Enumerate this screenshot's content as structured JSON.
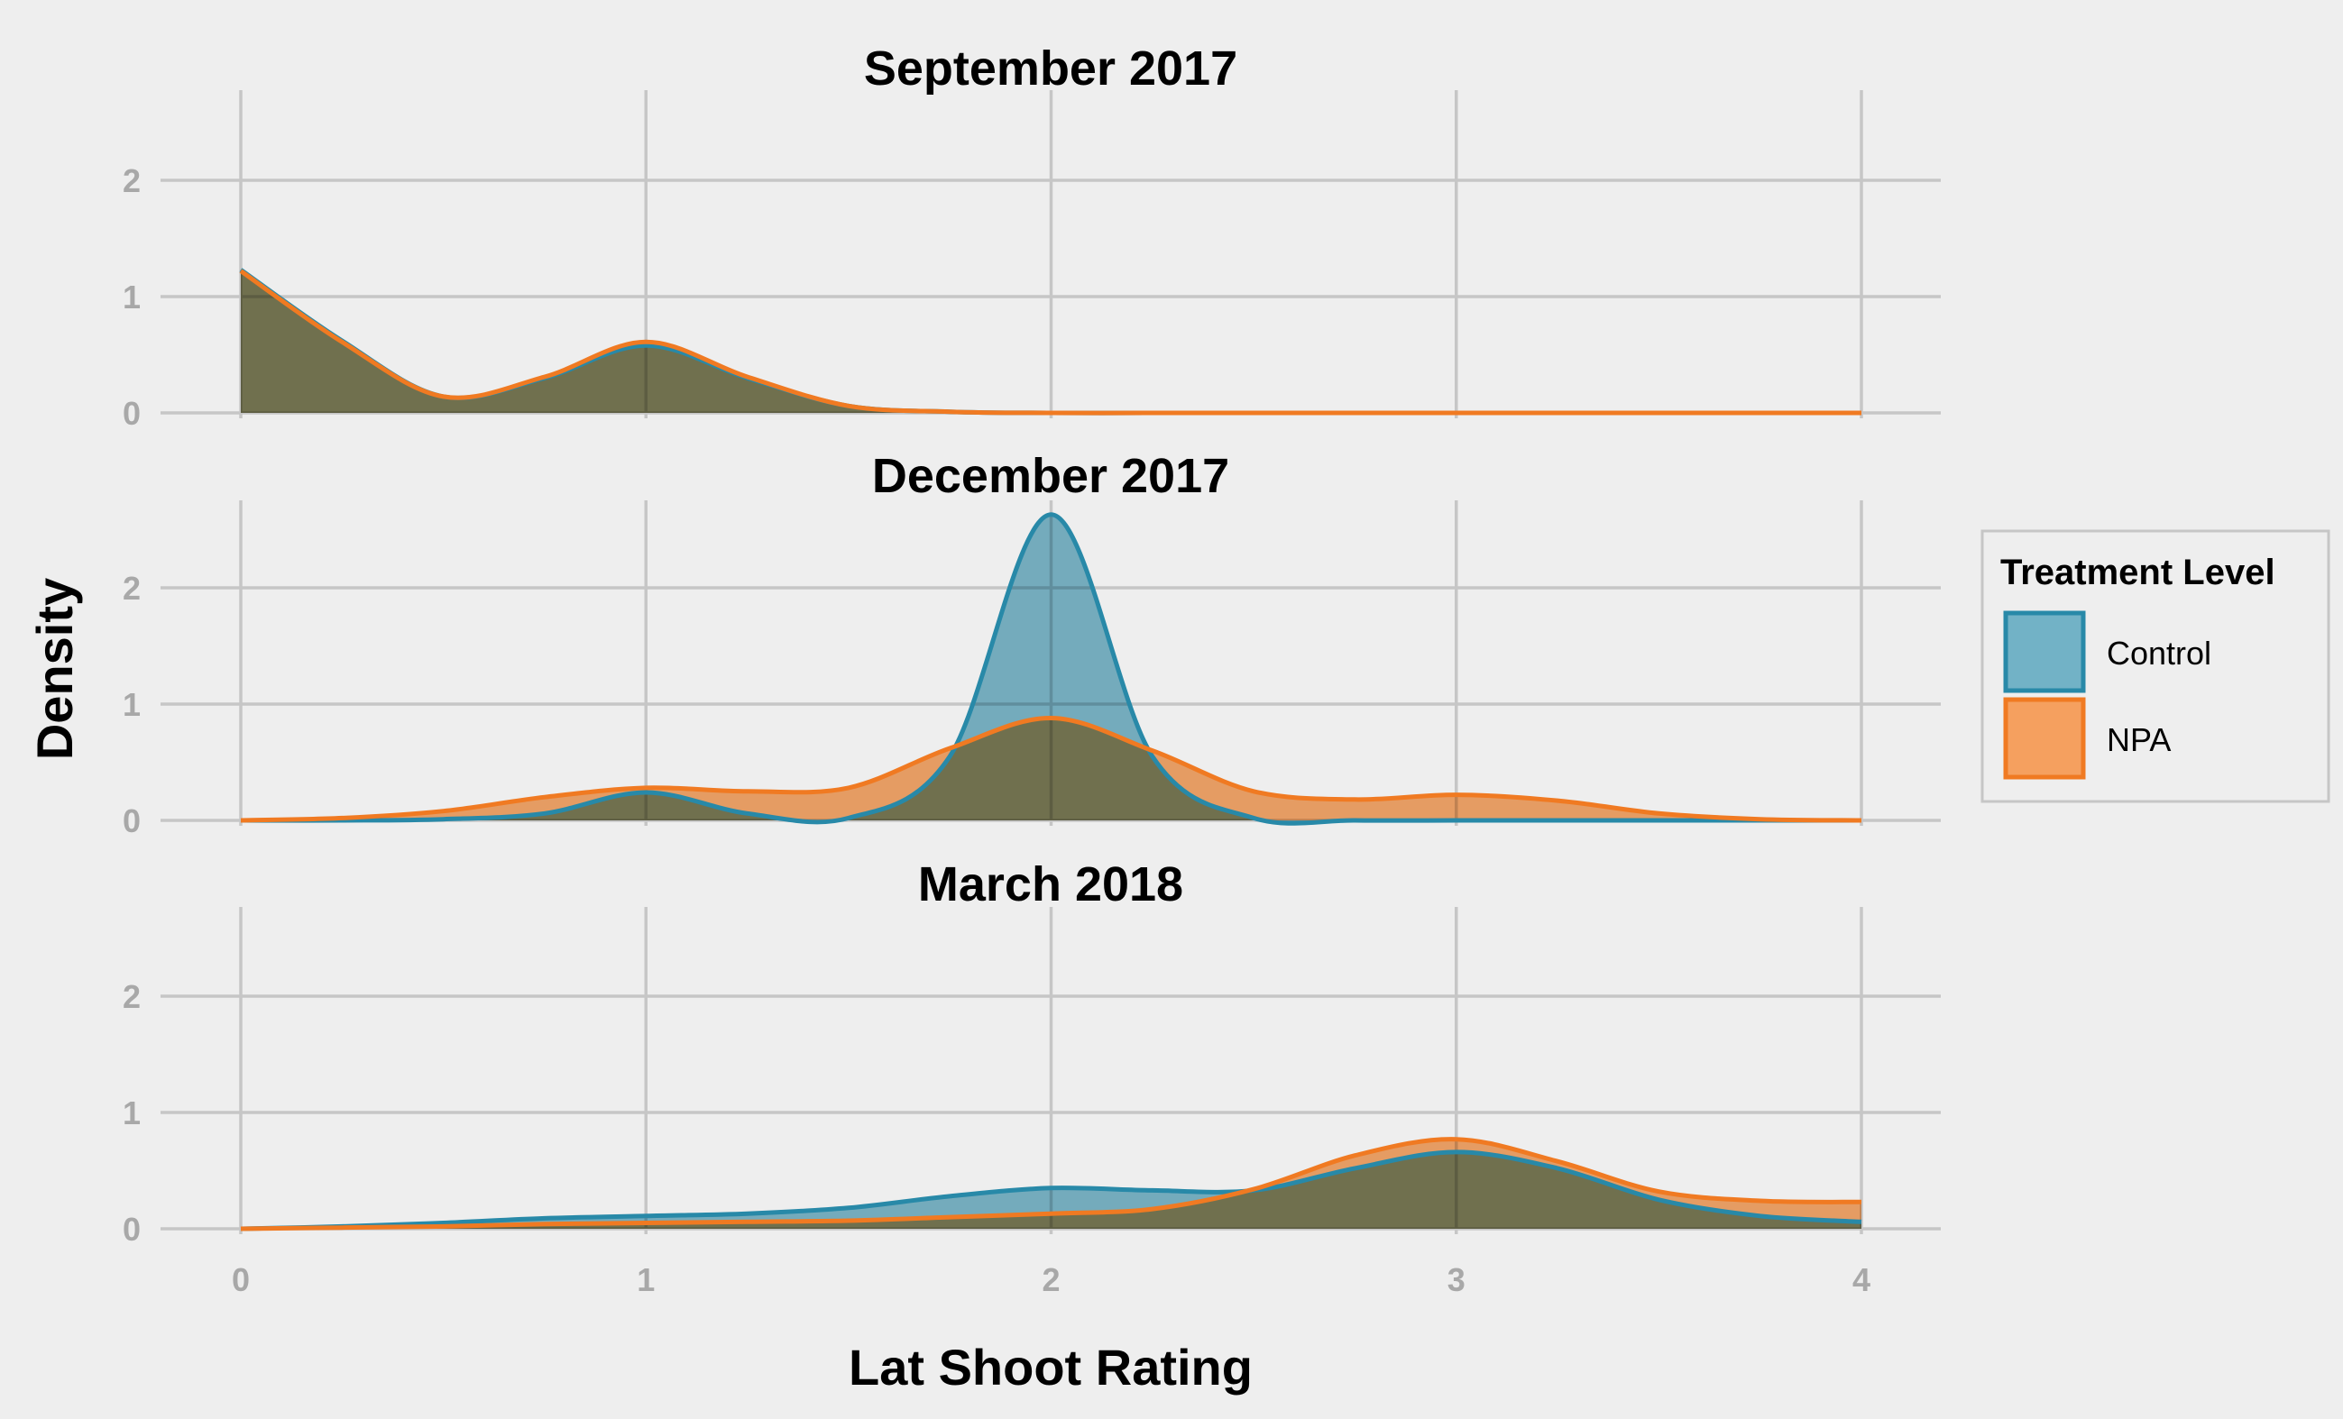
{
  "chart_data": {
    "type": "area",
    "subtype": "density",
    "xlabel": "Lat Shoot Rating",
    "ylabel": "Density",
    "xlim": [
      0,
      4
    ],
    "ylim": [
      0,
      2.6
    ],
    "x_ticks": [
      0,
      1,
      2,
      3,
      4
    ],
    "y_ticks": [
      0,
      1,
      2
    ],
    "grid": true,
    "legend": {
      "title": "Treatment Level",
      "placement": "right",
      "entries": [
        {
          "name": "Control",
          "fill": "#72b2c6",
          "stroke": "#2889a8"
        },
        {
          "name": "NPA",
          "fill": "#f5a05f",
          "stroke": "#f07a22"
        }
      ]
    },
    "x": [
      0,
      0.25,
      0.5,
      0.75,
      1,
      1.25,
      1.5,
      1.75,
      2,
      2.25,
      2.5,
      2.75,
      3,
      3.25,
      3.5,
      3.75,
      4
    ],
    "panels": [
      {
        "title": "September 2017",
        "series": [
          {
            "name": "Control",
            "values": [
              1.23,
              0.62,
              0.14,
              0.3,
              0.58,
              0.3,
              0.06,
              0.01,
              0,
              0,
              0,
              0,
              0,
              0,
              0,
              0,
              0
            ]
          },
          {
            "name": "NPA",
            "values": [
              1.22,
              0.61,
              0.14,
              0.31,
              0.61,
              0.31,
              0.06,
              0.01,
              0,
              0,
              0,
              0,
              0,
              0,
              0,
              0,
              0
            ]
          }
        ]
      },
      {
        "title": "December 2017",
        "series": [
          {
            "name": "Control",
            "values": [
              0,
              0,
              0.01,
              0.06,
              0.24,
              0.06,
              0.02,
              0.55,
              2.63,
              0.55,
              0.02,
              0,
              0,
              0,
              0,
              0,
              0
            ]
          },
          {
            "name": "NPA",
            "values": [
              0,
              0.02,
              0.08,
              0.2,
              0.28,
              0.25,
              0.28,
              0.62,
              0.88,
              0.6,
              0.25,
              0.18,
              0.22,
              0.17,
              0.06,
              0.01,
              0
            ]
          }
        ]
      },
      {
        "title": "March 2018",
        "series": [
          {
            "name": "Control",
            "values": [
              0,
              0.02,
              0.05,
              0.09,
              0.11,
              0.13,
              0.18,
              0.28,
              0.35,
              0.33,
              0.33,
              0.52,
              0.66,
              0.52,
              0.25,
              0.11,
              0.06
            ]
          },
          {
            "name": "NPA",
            "values": [
              0,
              0.01,
              0.02,
              0.04,
              0.05,
              0.06,
              0.07,
              0.1,
              0.13,
              0.17,
              0.34,
              0.63,
              0.77,
              0.58,
              0.32,
              0.24,
              0.23
            ]
          }
        ]
      }
    ]
  }
}
